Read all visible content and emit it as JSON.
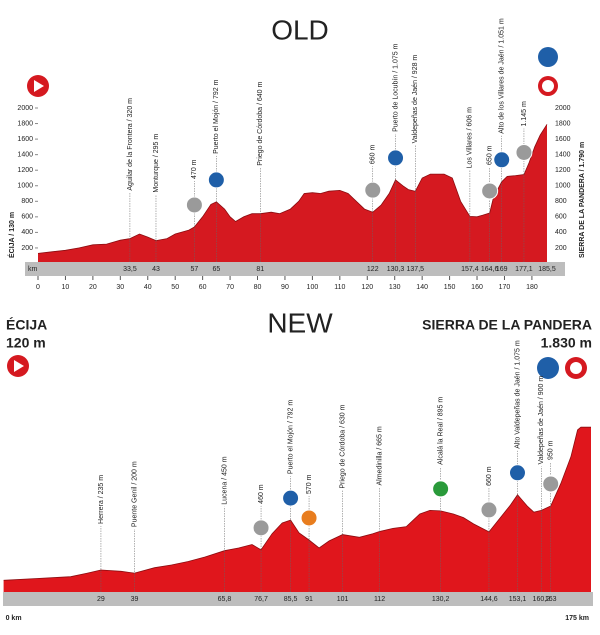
{
  "chart_data": [
    {
      "type": "area",
      "title": "OLD",
      "color": "#d51920",
      "xlabel": "km",
      "start_label": "ÉCIJA / 130 m",
      "end_label": "SIERRA DE LA PANDERA / 1.790 m",
      "xlim": [
        0,
        185.5
      ],
      "ylim": [
        0,
        2000
      ],
      "xticks": [
        0,
        10,
        20,
        30,
        40,
        50,
        60,
        70,
        80,
        90,
        100,
        110,
        120,
        130,
        140,
        150,
        160,
        170,
        180
      ],
      "yticks": [
        200,
        400,
        600,
        800,
        1000,
        1200,
        1400,
        1600,
        1800,
        2000
      ],
      "x": [
        0,
        5,
        10,
        15,
        20,
        25,
        30,
        33.5,
        37,
        40,
        43,
        47,
        50,
        55,
        57,
        60,
        63,
        65,
        68,
        70,
        72,
        75,
        78,
        81,
        85,
        88,
        92,
        95,
        97,
        100,
        103,
        106,
        110,
        113,
        116,
        119,
        122,
        125,
        128,
        130.3,
        133,
        135,
        137.5,
        140,
        143,
        148,
        151,
        154,
        157.4,
        160,
        162,
        164.6,
        166,
        169,
        171,
        174,
        177.1,
        179,
        181,
        183,
        185.5
      ],
      "values": [
        130,
        150,
        170,
        200,
        240,
        250,
        300,
        320,
        380,
        340,
        295,
        320,
        380,
        430,
        470,
        600,
        760,
        792,
        700,
        600,
        540,
        600,
        640,
        640,
        660,
        640,
        700,
        800,
        900,
        910,
        900,
        930,
        940,
        900,
        800,
        700,
        660,
        750,
        900,
        1075,
        1000,
        950,
        928,
        1100,
        1150,
        1150,
        1100,
        800,
        606,
        600,
        620,
        650,
        850,
        1051,
        1120,
        1130,
        1145,
        1300,
        1500,
        1650,
        1790
      ],
      "markers": [
        {
          "km": {
            "value": 33.5,
            "label": "33,5"
          },
          "alt": 320,
          "label": "Aguilar de la Frontera / 320 m"
        },
        {
          "km": 43,
          "alt": 295,
          "label": "Monturque / 295 m"
        },
        {
          "km": 57,
          "alt": 470,
          "label": "470 m",
          "icon": "gray"
        },
        {
          "km": 65,
          "alt": 792,
          "label": "Puerto el Mojón / 792 m",
          "icon": "blue"
        },
        {
          "km": 81,
          "alt": 640,
          "label": "Priego de Córdoba / 640 m"
        },
        {
          "km": 122,
          "alt": 660,
          "label": "660 m",
          "icon": "gray"
        },
        {
          "km": {
            "value": 130.3,
            "label": "130,3"
          },
          "alt": 1075,
          "label": "Puerto de Locubín / 1.075 m",
          "icon": "blue"
        },
        {
          "km": {
            "value": 137.5,
            "label": "137,5"
          },
          "alt": 928,
          "label": "Valdepeñas de Jaén / 928 m"
        },
        {
          "km": {
            "value": 157.4,
            "label": "157,4"
          },
          "alt": 606,
          "label": "Los Villares / 606 m"
        },
        {
          "km": {
            "value": 164.6,
            "label": "164,6"
          },
          "alt": 650,
          "label": "650 m",
          "icon": "gray"
        },
        {
          "km": 169,
          "alt": 1051,
          "label": "Alto de los Villares de Jaén / 1.051 m",
          "icon": "blue"
        },
        {
          "km": {
            "value": 177.1,
            "label": "177,1"
          },
          "alt": 1145,
          "label": "1.145 m",
          "icon": "gray"
        },
        {
          "km": {
            "value": 185.5,
            "label": "185,5"
          }
        }
      ]
    },
    {
      "type": "area",
      "title": "NEW",
      "color": "#e0161c",
      "start_name": "ÉCIJA",
      "start_alt": "120 m",
      "end_name": "SIERRA DE LA PANDERA",
      "end_alt": "1.830 m",
      "xlim": [
        0,
        175
      ],
      "ylim": [
        0,
        2000
      ],
      "xticks": [
        {
          "value": 0,
          "label": "0 km"
        },
        {
          "value": 175,
          "label": "175 km"
        }
      ],
      "x": [
        0,
        10,
        20,
        25,
        29,
        35,
        39,
        45,
        50,
        55,
        60,
        65.8,
        70,
        74,
        76.7,
        80,
        83,
        85.5,
        88,
        91,
        94,
        97,
        101,
        106,
        110,
        112,
        116,
        120,
        124,
        127,
        130.2,
        134,
        137,
        140,
        144.6,
        148,
        151,
        153.1,
        156,
        158,
        160.2,
        163,
        166,
        169,
        171,
        172,
        175
      ],
      "values": [
        120,
        140,
        160,
        200,
        235,
        220,
        200,
        260,
        290,
        330,
        380,
        450,
        480,
        520,
        460,
        640,
        760,
        792,
        650,
        570,
        480,
        560,
        630,
        600,
        640,
        665,
        700,
        720,
        860,
        900,
        895,
        860,
        820,
        750,
        660,
        820,
        960,
        1075,
        950,
        880,
        900,
        950,
        1200,
        1500,
        1800,
        1830,
        1830
      ],
      "markers": [
        {
          "km": 29,
          "alt": 235,
          "label": "Herrera / 235 m"
        },
        {
          "km": 39,
          "alt": 200,
          "label": "Puente Genil / 200 m"
        },
        {
          "km": {
            "value": 65.8,
            "label": "65,8"
          },
          "alt": 450,
          "label": "Lucena / 450 m"
        },
        {
          "km": {
            "value": 76.7,
            "label": "76,7"
          },
          "alt": 460,
          "label": "460 m",
          "icon": "gray"
        },
        {
          "km": {
            "value": 85.5,
            "label": "85,5"
          },
          "alt": 792,
          "label": "Puerto el Mojón / 792 m",
          "icon": "blue"
        },
        {
          "km": 91,
          "alt": 570,
          "label": "570 m",
          "icon": "orange"
        },
        {
          "km": 101,
          "alt": 630,
          "label": "Priego de Córdoba / 630 m"
        },
        {
          "km": 112,
          "alt": 665,
          "label": "Almedinilla / 665 m"
        },
        {
          "km": {
            "value": 130.2,
            "label": "130,2"
          },
          "alt": 895,
          "label": "Alcalá la Real / 895 m",
          "icon": "green"
        },
        {
          "km": {
            "value": 144.6,
            "label": "144,6"
          },
          "alt": 660,
          "label": "660 m",
          "icon": "gray"
        },
        {
          "km": {
            "value": 153.1,
            "label": "153,1"
          },
          "alt": 1075,
          "label": "Alto Valdepeñas de Jaén / 1.075 m",
          "icon": "blue"
        },
        {
          "km": {
            "value": 160.2,
            "label": "160,2"
          },
          "alt": 900,
          "label": "Valdepeñas de Jaén / 900 m"
        },
        {
          "km": 163,
          "alt": 950,
          "label": "950 m",
          "icon": "gray"
        }
      ]
    }
  ]
}
